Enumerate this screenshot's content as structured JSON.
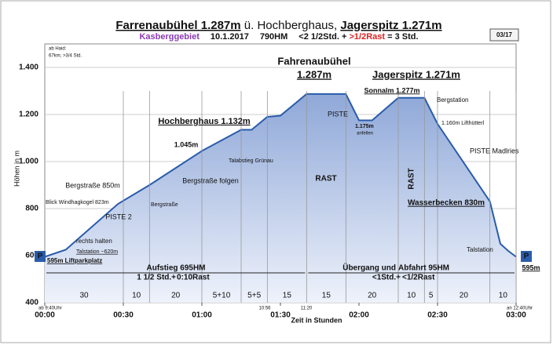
{
  "chart_data": {
    "type": "area",
    "title_parts": [
      "Farrenaubühel 1.287m",
      " ü. Hochberghaus, ",
      "Jagerspitz 1.271m"
    ],
    "subtitle_parts": [
      "Kasberggebiet",
      "10.1.2017",
      "790HM",
      "<2 1/2Std. + ",
      ">1/2Rast",
      " = 3 Std."
    ],
    "page_number": "03/17",
    "x_label": "Zeit in Stunden",
    "y_label": "Höhen in m",
    "x": [
      0,
      8,
      28,
      40,
      60,
      75,
      79,
      85,
      90,
      100,
      115,
      120,
      125,
      135,
      145,
      150,
      170,
      174,
      177,
      180
    ],
    "values": [
      595,
      625,
      820,
      900,
      1045,
      1135,
      1135,
      1190,
      1195,
      1287,
      1287,
      1175,
      1175,
      1271,
      1271,
      1160,
      830,
      650,
      620,
      595
    ],
    "color": "#2a5caa",
    "xlim": [
      0,
      180
    ],
    "xticks": [
      {
        "value": 0,
        "label": "00:00"
      },
      {
        "value": 30,
        "label": "00:30"
      },
      {
        "value": 60,
        "label": "01:00"
      },
      {
        "value": 90,
        "label": "01:30"
      },
      {
        "value": 120,
        "label": "02:00"
      },
      {
        "value": 150,
        "label": "02:30"
      },
      {
        "value": 180,
        "label": "03:00"
      }
    ],
    "ylim": [
      400,
      1500
    ],
    "yticks": [
      400,
      600,
      800,
      {
        "value": 1000,
        "label": "1.000"
      },
      {
        "value": 1200,
        "label": "1.200"
      },
      {
        "value": 1400,
        "label": "1.400"
      }
    ],
    "grid": true,
    "segments": {
      "labels": [
        "30",
        "10",
        "20",
        "5+10",
        "5+5",
        "15",
        "15",
        "20",
        "10",
        "5",
        "20",
        "10"
      ],
      "ends": [
        30,
        40,
        60,
        75,
        85,
        100,
        115,
        135,
        145,
        150,
        170,
        180
      ]
    },
    "annotations": [
      "ab Haid:",
      "67km; >3/4 Std.",
      "Fahrenaubühel",
      "1.287m",
      "Jagerspitz  1.271m",
      "Sonnalm 1.277m",
      "Bergstation",
      "Hochberghaus 1.132m",
      "1.045m",
      "Talabstieg Grünau",
      "PISTE",
      "1.175m",
      "anfellen",
      "1.160m Lifthütterl",
      "PISTE Madlries",
      "RAST",
      "RAST",
      "Bergstraße 850m",
      "Bergstraße folgen",
      "Blick Windhagkogel 823m",
      "Bergstraße",
      "PISTE 2",
      "Wasserbecken 830m",
      "rechts halten",
      "Talstation ~620m",
      "595m Liftparkplatz",
      "Talstation",
      "P",
      "P",
      "595m",
      "Aufstieg 695HM",
      "1 1/2 Std.+",
      "0:10Rast",
      "Übergang und",
      "Abfahrt 95HM",
      "<1Std.+",
      "<1/2Rast",
      "ab 9:40Uhr",
      "an 12:40Uhr",
      "10:56",
      "11:20"
    ]
  }
}
